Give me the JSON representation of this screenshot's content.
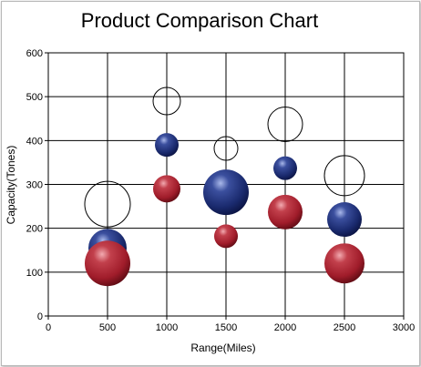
{
  "colors": {
    "red": "#a01c2a",
    "blue": "#1a2a6e",
    "outline": "#000000"
  },
  "chart_data": {
    "type": "scatter",
    "subtype": "bubble",
    "title": "Product Comparison Chart",
    "xlabel": "Range(Miles)",
    "ylabel": "Capacity(Tones)",
    "xlim": [
      0,
      3000
    ],
    "ylim": [
      0,
      600
    ],
    "x_ticks": [
      0,
      500,
      1000,
      1500,
      2000,
      2500,
      3000
    ],
    "y_ticks": [
      0,
      100,
      200,
      300,
      400,
      500,
      600
    ],
    "grid": true,
    "legend": "none",
    "series": [
      {
        "style": "outline",
        "points": [
          {
            "x": 500,
            "y": 255,
            "size": 25
          },
          {
            "x": 1000,
            "y": 490,
            "size": 15
          },
          {
            "x": 1500,
            "y": 382,
            "size": 13
          },
          {
            "x": 2000,
            "y": 437,
            "size": 19
          },
          {
            "x": 2500,
            "y": 320,
            "size": 22
          }
        ]
      },
      {
        "style": "blue",
        "points": [
          {
            "x": 500,
            "y": 155,
            "size": 21
          },
          {
            "x": 1000,
            "y": 390,
            "size": 13
          },
          {
            "x": 1500,
            "y": 282,
            "size": 25
          },
          {
            "x": 2000,
            "y": 337,
            "size": 13
          },
          {
            "x": 2500,
            "y": 220,
            "size": 19
          }
        ]
      },
      {
        "style": "red",
        "points": [
          {
            "x": 500,
            "y": 120,
            "size": 25
          },
          {
            "x": 1000,
            "y": 290,
            "size": 15
          },
          {
            "x": 1500,
            "y": 182,
            "size": 13
          },
          {
            "x": 2000,
            "y": 237,
            "size": 19
          },
          {
            "x": 2500,
            "y": 120,
            "size": 22
          }
        ]
      }
    ]
  }
}
